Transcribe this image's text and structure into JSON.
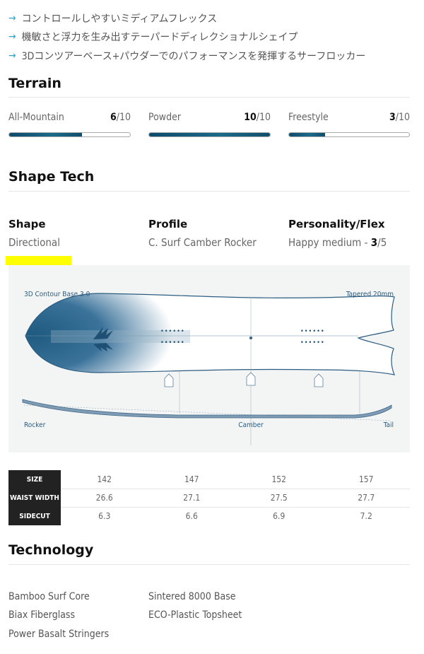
{
  "features": [
    "コントロールしやすいミディアムフレックス",
    "機敏さと浮力を生み出すテーパードディレクショナルシェイプ",
    "3Dコンツアーベース+パウダーでのパフォーマンスを発揮するサーフロッカー"
  ],
  "terrain": {
    "title": "Terrain",
    "ratings": [
      {
        "label": "All-Mountain",
        "value": "6",
        "max": "/10",
        "fraction": 0.6
      },
      {
        "label": "Powder",
        "value": "10",
        "max": "/10",
        "fraction": 1.0
      },
      {
        "label": "Freestyle",
        "value": "3",
        "max": "/10",
        "fraction": 0.3
      }
    ]
  },
  "shape_tech": {
    "title": "Shape Tech",
    "shape": {
      "label": "Shape",
      "value": "Directional"
    },
    "profile": {
      "label": "Profile",
      "value": "C. Surf Camber Rocker"
    },
    "flex": {
      "label": "Personality/Flex",
      "prefix": "Happy medium - ",
      "value": "3",
      "max": "/5"
    }
  },
  "diagram": {
    "base_label": "3D Contour Base 3.0",
    "taper_label": "Tapered 20mm",
    "rocker_label": "Rocker",
    "camber_label": "Camber",
    "tail_label": "Tail"
  },
  "specs": {
    "rows": [
      {
        "header": "SIZE",
        "values": [
          "142",
          "147",
          "152",
          "157"
        ]
      },
      {
        "header": "WAIST WIDTH",
        "values": [
          "26.6",
          "27.1",
          "27.5",
          "27.7"
        ]
      },
      {
        "header": "SIDECUT",
        "values": [
          "6.3",
          "6.6",
          "6.9",
          "7.2"
        ]
      }
    ]
  },
  "technology": {
    "title": "Technology",
    "col1": [
      "Bamboo Surf Core",
      "Biax Fiberglass",
      "Power Basalt Stringers"
    ],
    "col2": [
      "Sintered 8000 Base",
      "ECO-Plastic Topsheet"
    ]
  },
  "colors": {
    "accent": "#2aa3bf",
    "bar": "#0d4a6b",
    "highlight": "#ffff00",
    "diagram_bg": "#f3f4f4"
  }
}
